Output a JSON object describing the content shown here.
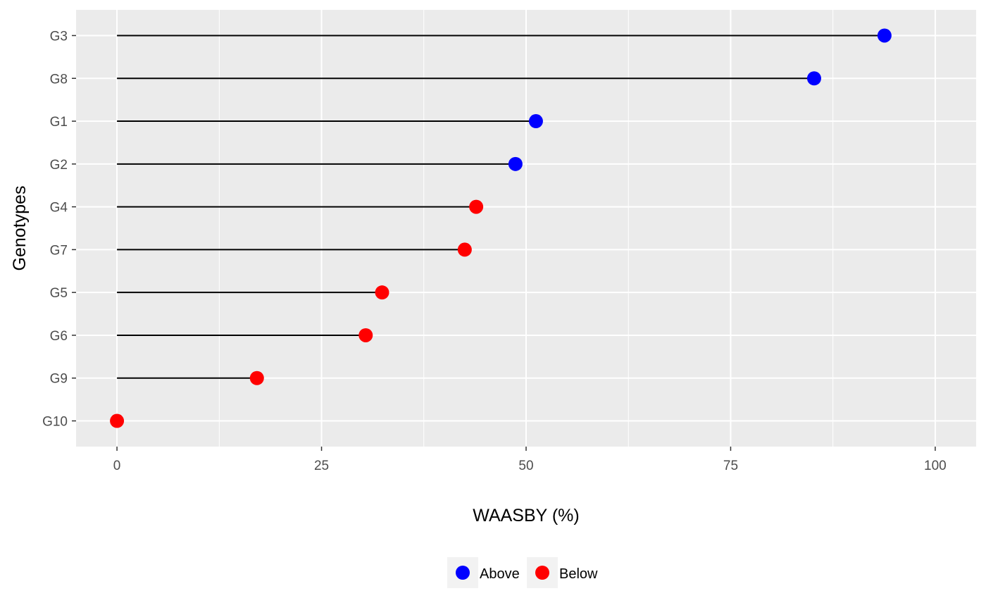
{
  "chart_data": {
    "type": "scatter",
    "subtype": "lollipop",
    "xlabel": "WAASBY (%)",
    "ylabel": "Genotypes",
    "xlim": [
      -5,
      105
    ],
    "xticks": [
      0,
      25,
      50,
      75,
      100
    ],
    "grid": true,
    "legend_position": "bottom",
    "categories": [
      "G3",
      "G8",
      "G1",
      "G2",
      "G4",
      "G7",
      "G5",
      "G6",
      "G9",
      "G10"
    ],
    "values": [
      93.8,
      85.2,
      51.2,
      48.7,
      43.9,
      42.5,
      32.4,
      30.4,
      17.1,
      0
    ],
    "groups": [
      "Above",
      "Above",
      "Above",
      "Above",
      "Below",
      "Below",
      "Below",
      "Below",
      "Below",
      "Below"
    ],
    "legend": [
      {
        "label": "Above",
        "color": "#0000ff"
      },
      {
        "label": "Below",
        "color": "#ff0000"
      }
    ],
    "colors": {
      "panel_background": "#ebebeb",
      "grid": "#ffffff",
      "segment": "#000000"
    }
  }
}
